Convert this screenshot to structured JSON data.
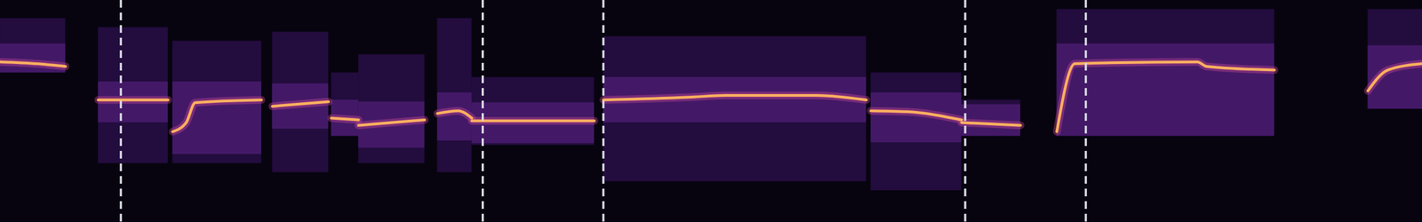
{
  "chart_data": {
    "type": "spectrogram",
    "xlim": [
      0,
      1568
    ],
    "ylim": [
      0,
      245
    ],
    "tick_labels": false,
    "color": "#ffb060",
    "boundaries": [
      133,
      532,
      665,
      1064,
      1197
    ],
    "line_style": "dashed",
    "segments": [
      {
        "start": 0,
        "end": 72,
        "band": [
          165,
          225
        ],
        "pitch": [
          [
            0,
            177
          ],
          [
            40,
            175
          ],
          [
            72,
            172
          ]
        ]
      },
      {
        "start": 108,
        "end": 185,
        "band": [
          65,
          215
        ],
        "pitch": [
          [
            108,
            135
          ],
          [
            185,
            135
          ]
        ]
      },
      {
        "start": 190,
        "end": 288,
        "band": [
          65,
          200
        ],
        "pitch": [
          [
            190,
            100
          ],
          [
            205,
            110
          ],
          [
            215,
            132
          ],
          [
            288,
            135
          ]
        ]
      },
      {
        "start": 300,
        "end": 362,
        "band": [
          55,
          210
        ],
        "pitch": [
          [
            300,
            128
          ],
          [
            362,
            133
          ]
        ]
      },
      {
        "start": 365,
        "end": 395,
        "band": [
          95,
          165
        ],
        "pitch": [
          [
            365,
            115
          ],
          [
            395,
            113
          ]
        ]
      },
      {
        "start": 395,
        "end": 468,
        "band": [
          65,
          185
        ],
        "pitch": [
          [
            395,
            107
          ],
          [
            468,
            113
          ]
        ]
      },
      {
        "start": 482,
        "end": 520,
        "band": [
          55,
          225
        ],
        "pitch": [
          [
            482,
            120
          ],
          [
            505,
            123
          ],
          [
            520,
            115
          ]
        ]
      },
      {
        "start": 520,
        "end": 655,
        "band": [
          85,
          160
        ],
        "pitch": [
          [
            520,
            112
          ],
          [
            655,
            112
          ]
        ]
      },
      {
        "start": 665,
        "end": 955,
        "band": [
          45,
          205
        ],
        "pitch": [
          [
            665,
            135
          ],
          [
            760,
            138
          ],
          [
            800,
            140
          ],
          [
            900,
            140
          ],
          [
            955,
            135
          ]
        ]
      },
      {
        "start": 960,
        "end": 1060,
        "band": [
          35,
          165
        ],
        "pitch": [
          [
            960,
            123
          ],
          [
            1000,
            122
          ],
          [
            1060,
            113
          ]
        ]
      },
      {
        "start": 1060,
        "end": 1125,
        "band": [
          95,
          135
        ],
        "pitch": [
          [
            1060,
            110
          ],
          [
            1125,
            107
          ]
        ]
      },
      {
        "start": 1165,
        "end": 1405,
        "band": [
          95,
          235
        ],
        "pitch": [
          [
            1165,
            100
          ],
          [
            1185,
            175
          ],
          [
            1320,
            177
          ],
          [
            1330,
            172
          ],
          [
            1405,
            168
          ]
        ]
      },
      {
        "start": 1508,
        "end": 1568,
        "band": [
          125,
          235
        ],
        "pitch": [
          [
            1508,
            145
          ],
          [
            1530,
            168
          ],
          [
            1568,
            175
          ]
        ]
      }
    ]
  }
}
